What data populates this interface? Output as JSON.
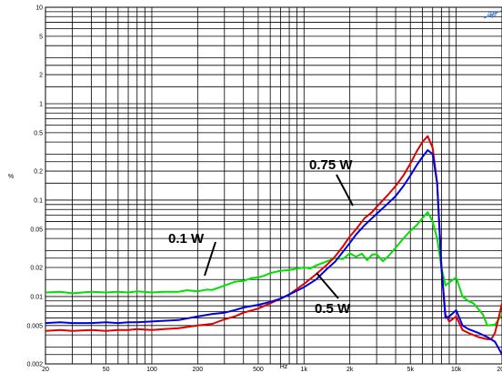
{
  "chart_data": {
    "type": "line",
    "xlabel": "Hz",
    "ylabel": "%",
    "x_scale": "log",
    "y_scale": "log",
    "xlim": [
      20,
      20000
    ],
    "ylim": [
      0.002,
      10
    ],
    "grid": true,
    "x_ticks": [
      {
        "value": 20,
        "label": "20"
      },
      {
        "value": 50,
        "label": "50"
      },
      {
        "value": 100,
        "label": "100"
      },
      {
        "value": 200,
        "label": "200"
      },
      {
        "value": 500,
        "label": "500"
      },
      {
        "value": 1000,
        "label": "1k"
      },
      {
        "value": 2000,
        "label": "2k"
      },
      {
        "value": 5000,
        "label": "5k"
      },
      {
        "value": 10000,
        "label": "10k"
      },
      {
        "value": 20000,
        "label": "20k"
      }
    ],
    "y_ticks": [
      {
        "value": 0.002,
        "label": "0.002"
      },
      {
        "value": 0.005,
        "label": "0.005"
      },
      {
        "value": 0.01,
        "label": "0.01"
      },
      {
        "value": 0.02,
        "label": "0.02"
      },
      {
        "value": 0.05,
        "label": "0.05"
      },
      {
        "value": 0.1,
        "label": "0.1"
      },
      {
        "value": 0.2,
        "label": "0.2"
      },
      {
        "value": 0.5,
        "label": "0.5"
      },
      {
        "value": 1,
        "label": "1"
      },
      {
        "value": 2,
        "label": "2"
      },
      {
        "value": 5,
        "label": "5"
      },
      {
        "value": 10,
        "label": "10"
      }
    ],
    "series": [
      {
        "name": "0.1 W",
        "color": "#00e000",
        "points": [
          [
            20,
            0.011
          ],
          [
            25,
            0.0112
          ],
          [
            30,
            0.0108
          ],
          [
            40,
            0.0112
          ],
          [
            50,
            0.011
          ],
          [
            60,
            0.0112
          ],
          [
            70,
            0.011
          ],
          [
            80,
            0.0113
          ],
          [
            100,
            0.011
          ],
          [
            120,
            0.0112
          ],
          [
            150,
            0.0112
          ],
          [
            170,
            0.0116
          ],
          [
            200,
            0.0113
          ],
          [
            230,
            0.0118
          ],
          [
            250,
            0.0117
          ],
          [
            300,
            0.013
          ],
          [
            350,
            0.0142
          ],
          [
            400,
            0.0145
          ],
          [
            450,
            0.0155
          ],
          [
            500,
            0.0158
          ],
          [
            550,
            0.0165
          ],
          [
            600,
            0.0175
          ],
          [
            700,
            0.0185
          ],
          [
            800,
            0.0188
          ],
          [
            900,
            0.0195
          ],
          [
            1000,
            0.02
          ],
          [
            1100,
            0.0195
          ],
          [
            1200,
            0.021
          ],
          [
            1400,
            0.023
          ],
          [
            1600,
            0.025
          ],
          [
            1800,
            0.0245
          ],
          [
            2000,
            0.028
          ],
          [
            2200,
            0.0258
          ],
          [
            2400,
            0.0278
          ],
          [
            2600,
            0.0238
          ],
          [
            2800,
            0.0272
          ],
          [
            3000,
            0.0275
          ],
          [
            3300,
            0.0232
          ],
          [
            3600,
            0.0265
          ],
          [
            4000,
            0.032
          ],
          [
            4500,
            0.04
          ],
          [
            5000,
            0.048
          ],
          [
            5500,
            0.055
          ],
          [
            6000,
            0.065
          ],
          [
            6500,
            0.075
          ],
          [
            7000,
            0.06
          ],
          [
            7500,
            0.04
          ],
          [
            8000,
            0.02
          ],
          [
            8500,
            0.013
          ],
          [
            9000,
            0.014
          ],
          [
            10000,
            0.0158
          ],
          [
            11000,
            0.01
          ],
          [
            12000,
            0.009
          ],
          [
            13000,
            0.0085
          ],
          [
            15000,
            0.0065
          ],
          [
            16000,
            0.005
          ],
          [
            18000,
            0.0051
          ],
          [
            20000,
            0.0065
          ]
        ]
      },
      {
        "name": "0.75 W",
        "color": "#e00000",
        "points": [
          [
            20,
            0.0044
          ],
          [
            25,
            0.0045
          ],
          [
            30,
            0.0044
          ],
          [
            40,
            0.0045
          ],
          [
            50,
            0.0044
          ],
          [
            60,
            0.0045
          ],
          [
            70,
            0.0045
          ],
          [
            80,
            0.0046
          ],
          [
            100,
            0.0045
          ],
          [
            120,
            0.0046
          ],
          [
            150,
            0.0047
          ],
          [
            200,
            0.005
          ],
          [
            250,
            0.0052
          ],
          [
            300,
            0.0058
          ],
          [
            350,
            0.0062
          ],
          [
            400,
            0.0068
          ],
          [
            500,
            0.0075
          ],
          [
            600,
            0.0085
          ],
          [
            700,
            0.0095
          ],
          [
            800,
            0.0105
          ],
          [
            900,
            0.012
          ],
          [
            1000,
            0.0135
          ],
          [
            1200,
            0.017
          ],
          [
            1400,
            0.021
          ],
          [
            1600,
            0.026
          ],
          [
            1800,
            0.033
          ],
          [
            2000,
            0.042
          ],
          [
            2200,
            0.05
          ],
          [
            2500,
            0.065
          ],
          [
            2800,
            0.075
          ],
          [
            3000,
            0.085
          ],
          [
            3500,
            0.11
          ],
          [
            4000,
            0.14
          ],
          [
            4500,
            0.18
          ],
          [
            5000,
            0.24
          ],
          [
            5500,
            0.32
          ],
          [
            6000,
            0.4
          ],
          [
            6500,
            0.46
          ],
          [
            7000,
            0.35
          ],
          [
            7500,
            0.15
          ],
          [
            8000,
            0.02
          ],
          [
            8500,
            0.0065
          ],
          [
            9000,
            0.0055
          ],
          [
            10000,
            0.0062
          ],
          [
            11000,
            0.0045
          ],
          [
            12000,
            0.0042
          ],
          [
            14000,
            0.0038
          ],
          [
            16000,
            0.0036
          ],
          [
            17000,
            0.0036
          ],
          [
            18000,
            0.0042
          ],
          [
            19000,
            0.006
          ],
          [
            20000,
            0.0085
          ]
        ]
      },
      {
        "name": "0.5 W",
        "color": "#0000e0",
        "points": [
          [
            20,
            0.0053
          ],
          [
            25,
            0.0054
          ],
          [
            30,
            0.0053
          ],
          [
            40,
            0.0053
          ],
          [
            50,
            0.0054
          ],
          [
            60,
            0.0053
          ],
          [
            70,
            0.0054
          ],
          [
            80,
            0.0054
          ],
          [
            100,
            0.0055
          ],
          [
            120,
            0.0056
          ],
          [
            150,
            0.0057
          ],
          [
            200,
            0.0062
          ],
          [
            250,
            0.0066
          ],
          [
            300,
            0.0068
          ],
          [
            350,
            0.0072
          ],
          [
            400,
            0.0077
          ],
          [
            500,
            0.0082
          ],
          [
            600,
            0.0088
          ],
          [
            700,
            0.0095
          ],
          [
            800,
            0.0105
          ],
          [
            900,
            0.0115
          ],
          [
            1000,
            0.0125
          ],
          [
            1200,
            0.015
          ],
          [
            1400,
            0.019
          ],
          [
            1600,
            0.023
          ],
          [
            1800,
            0.029
          ],
          [
            2000,
            0.036
          ],
          [
            2200,
            0.044
          ],
          [
            2500,
            0.055
          ],
          [
            2800,
            0.065
          ],
          [
            3000,
            0.072
          ],
          [
            3500,
            0.09
          ],
          [
            4000,
            0.11
          ],
          [
            4500,
            0.14
          ],
          [
            5000,
            0.18
          ],
          [
            5500,
            0.23
          ],
          [
            6000,
            0.28
          ],
          [
            6500,
            0.33
          ],
          [
            7000,
            0.3
          ],
          [
            7500,
            0.15
          ],
          [
            8000,
            0.02
          ],
          [
            8500,
            0.006
          ],
          [
            9000,
            0.0062
          ],
          [
            10000,
            0.0072
          ],
          [
            11000,
            0.005
          ],
          [
            12000,
            0.0046
          ],
          [
            14000,
            0.0042
          ],
          [
            16000,
            0.0038
          ],
          [
            18000,
            0.0034
          ],
          [
            20000,
            0.0025
          ]
        ]
      }
    ],
    "annotations": [
      {
        "text": "0.1 W",
        "series": "0.1 W"
      },
      {
        "text": "0.75 W",
        "series": "0.75 W"
      },
      {
        "text": "0.5 W",
        "series": "0.5 W"
      }
    ]
  }
}
